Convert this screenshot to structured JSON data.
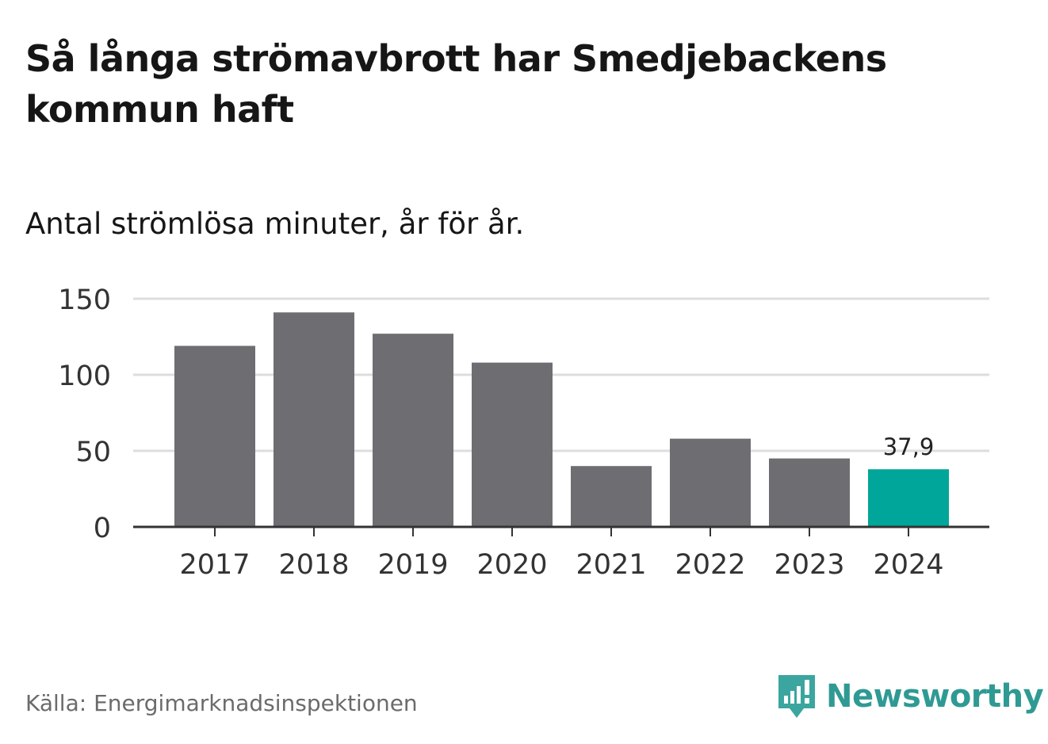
{
  "title": "Så långa strömavbrott har Smedjebackens kommun haft",
  "subtitle": "Antal strömlösa minuter, år för år.",
  "source": "Källa: Energimarknadsinspektionen",
  "brand": "Newsworthy",
  "colors": {
    "bar": "#6e6d72",
    "highlight": "#00a699",
    "grid": "#dddddd",
    "axis": "#333333",
    "brand": "#2f9a93"
  },
  "chart_data": {
    "type": "bar",
    "categories": [
      "2017",
      "2018",
      "2019",
      "2020",
      "2021",
      "2022",
      "2023",
      "2024"
    ],
    "values": [
      119,
      141,
      127,
      108,
      40,
      58,
      45,
      37.9
    ],
    "highlight_index": 7,
    "data_labels": [
      {
        "index": 7,
        "text": "37,9"
      }
    ],
    "yticks": [
      0,
      50,
      100,
      150
    ],
    "ylim": [
      0,
      150
    ],
    "title": "Så långa strömavbrott har Smedjebackens kommun haft",
    "xlabel": "",
    "ylabel": "",
    "grid": true
  }
}
